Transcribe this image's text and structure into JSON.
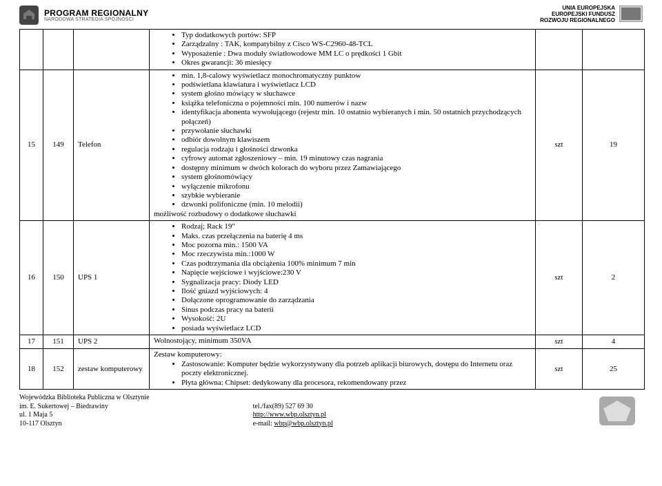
{
  "header": {
    "program_title": "PROGRAM REGIONALNY",
    "program_subtitle": "NARODOWA STRATEGIA SPÓJNOŚCI",
    "eu_line1": "UNIA EUROPEJSKA",
    "eu_line2": "EUROPEJSKI FUNDUSZ",
    "eu_line3": "ROZWOJU REGIONALNEGO"
  },
  "rows": [
    {
      "lp": "",
      "num": "",
      "name": "",
      "unit": "",
      "qty": "",
      "desc_items": [
        "Typ dodatkowych portów: SFP",
        "Zarządzalny : TAK, kompatybilny z Cisco WS-C2960-48-TCL",
        "Wyposażenie : Dwa moduły światłowodowe MM LC o prędkości 1 Gbit",
        "Okres gwarancji: 36 miesięcy"
      ],
      "desc_tail": []
    },
    {
      "lp": "15",
      "num": "149",
      "name": "Telefon",
      "unit": "szt",
      "qty": "19",
      "desc_items": [
        "min. 1,8-calowy wyświetlacz monochromatyczny punktow",
        "podświetlana klawiatura i wyświetlacz LCD",
        "system głośno mówiący w słuchawce",
        "książka telefoniczna o pojemności min. 100 numerów i nazw",
        "identyfikacja abonenta wywołującego (rejestr min. 10 ostatnio wybieranych i min. 50 ostatnich przychodzących połączeń)",
        "przywołanie słuchawki",
        "odbiór dowolnym klawiszem",
        "regulacja rodzaju i głośności dzwonka",
        "cyfrowy automat zgłoszeniowy – min. 19 minutowy czas nagrania",
        "dostępny minimum w dwóch kolorach do wyboru przez Zamawiającego",
        "system głośnomówiący",
        "wyłączenie mikrofonu",
        "szybkie wybieranie",
        "dzwonki polifoniczne (min. 10 melodii)"
      ],
      "desc_tail": [
        "możliwość rozbudowy o dodatkowe słuchawki"
      ]
    },
    {
      "lp": "16",
      "num": "150",
      "name": "UPS 1",
      "unit": "szt",
      "qty": "2",
      "desc_items": [
        "Rodzaj; Rack 19\"",
        "Maks. czas przełączenia na baterię 4 ms",
        "Moc pozorna min.: 1500 VA",
        "Moc rzeczywista min.:1000 W",
        "Czas podtrzymania dla obciążenia 100% minimum 7 min",
        "Napięcie wejściowe i wyjściowe:230 V",
        "Sygnalizacja pracy: Diody LED",
        "Ilość gniazd wyjściowych: 4",
        "Dołączone oprogramowanie do zarządzania",
        "Sinus podczas pracy na baterii",
        "Wysokość: 2U",
        "posiada wyświetlacz LCD"
      ],
      "desc_tail": []
    },
    {
      "lp": "17",
      "num": "151",
      "name": "UPS 2",
      "unit": "szt",
      "qty": "4",
      "desc_plain": "Wolnostojący, minimum 350VA",
      "desc_items": [],
      "desc_tail": []
    },
    {
      "lp": "18",
      "num": "152",
      "name": "zestaw komputerowy",
      "unit": "szt",
      "qty": "25",
      "desc_plain": "Zestaw komputerowy:",
      "desc_items": [
        "Zastosowanie: Komputer będzie wykorzystywany dla potrzeb aplikacji biurowych, dostępu do Internetu oraz poczty elektronicznej.",
        "Płyta główna: Chipset: dedykowany dla procesora, rekomendowany przez"
      ],
      "desc_tail": []
    }
  ],
  "footer": {
    "left_lines": [
      "Wojewódzka Biblioteka Publiczna w Olsztynie",
      "im. E. Sukertowej – Biedrawiny",
      "ul. 1 Maja 5",
      "10-117 Olsztyn"
    ],
    "mid_line1": "tel./fax(89) 527 69 30",
    "mid_link1_text": "http://www.wbp.olsztyn.pl",
    "mid_line3_prefix": "e-mail: ",
    "mid_link2_text": "wbp@wbp.olsztyn.pl"
  }
}
